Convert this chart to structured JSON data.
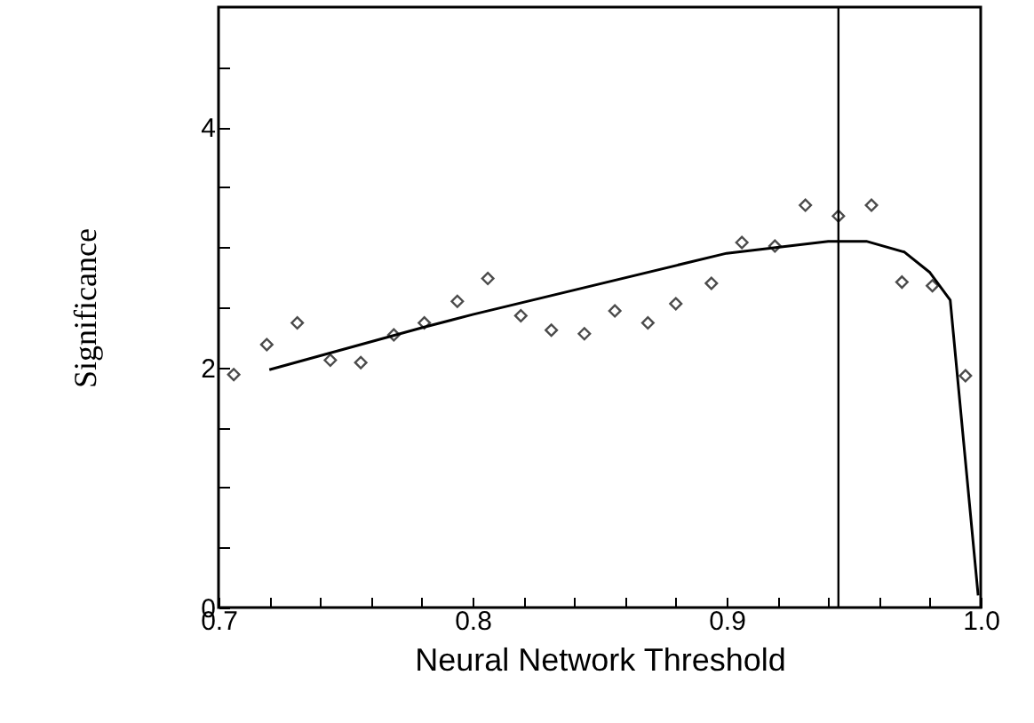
{
  "chart_data": {
    "type": "scatter",
    "xlabel": "Neural Network Threshold",
    "ylabel": "Significance",
    "xlim": [
      0.7,
      1.0
    ],
    "ylim": [
      0,
      5
    ],
    "xticks": [
      0.7,
      {
        "value": 0.72,
        "label": null
      },
      {
        "value": 0.74,
        "label": null
      },
      {
        "value": 0.76,
        "label": null
      },
      {
        "value": 0.78,
        "label": null
      },
      0.8,
      {
        "value": 0.82,
        "label": null
      },
      {
        "value": 0.84,
        "label": null
      },
      {
        "value": 0.86,
        "label": null
      },
      {
        "value": 0.88,
        "label": null
      },
      0.9,
      {
        "value": 0.92,
        "label": null
      },
      {
        "value": 0.94,
        "label": null
      },
      {
        "value": 0.96,
        "label": null
      },
      {
        "value": 0.98,
        "label": null
      },
      {
        "value": 1,
        "label": "1.0"
      }
    ],
    "yticks": [
      0,
      {
        "value": 0.5,
        "label": null
      },
      {
        "value": 1,
        "label": null
      },
      {
        "value": 1.5,
        "label": null
      },
      2,
      {
        "value": 2.5,
        "label": null
      },
      {
        "value": 3,
        "label": null
      },
      {
        "value": 3.5,
        "label": null
      },
      4,
      {
        "value": 4.5,
        "label": null
      }
    ],
    "marker": "diamond",
    "series": [
      {
        "type": "scatter",
        "color": "#000000",
        "x": [
          0.706,
          0.719,
          0.731,
          0.744,
          0.756,
          0.769,
          0.781,
          0.794,
          0.806,
          0.819,
          0.831,
          0.844,
          0.856,
          0.869,
          0.88,
          0.894,
          0.906,
          0.919,
          0.931,
          0.944,
          0.957,
          0.969,
          0.981,
          0.994
        ],
        "values": [
          1.94,
          2.19,
          2.37,
          2.06,
          2.04,
          2.27,
          2.37,
          2.55,
          2.74,
          2.43,
          2.31,
          2.28,
          2.47,
          2.37,
          2.53,
          2.7,
          3.04,
          3.01,
          3.35,
          3.26,
          3.35,
          2.71,
          2.68,
          1.93
        ]
      },
      {
        "type": "line",
        "color": "#000000",
        "marker": "none",
        "x": [
          0.72,
          0.78,
          0.8,
          0.9,
          0.94,
          0.955,
          0.97,
          0.98,
          0.988,
          0.999
        ],
        "values": [
          1.98,
          2.33,
          2.44,
          2.95,
          3.05,
          3.05,
          2.96,
          2.79,
          2.56,
          0.1
        ]
      }
    ],
    "ref_lines": [
      {
        "axis": "x",
        "value": 0.944,
        "color": "#000000"
      }
    ],
    "grid": false
  }
}
